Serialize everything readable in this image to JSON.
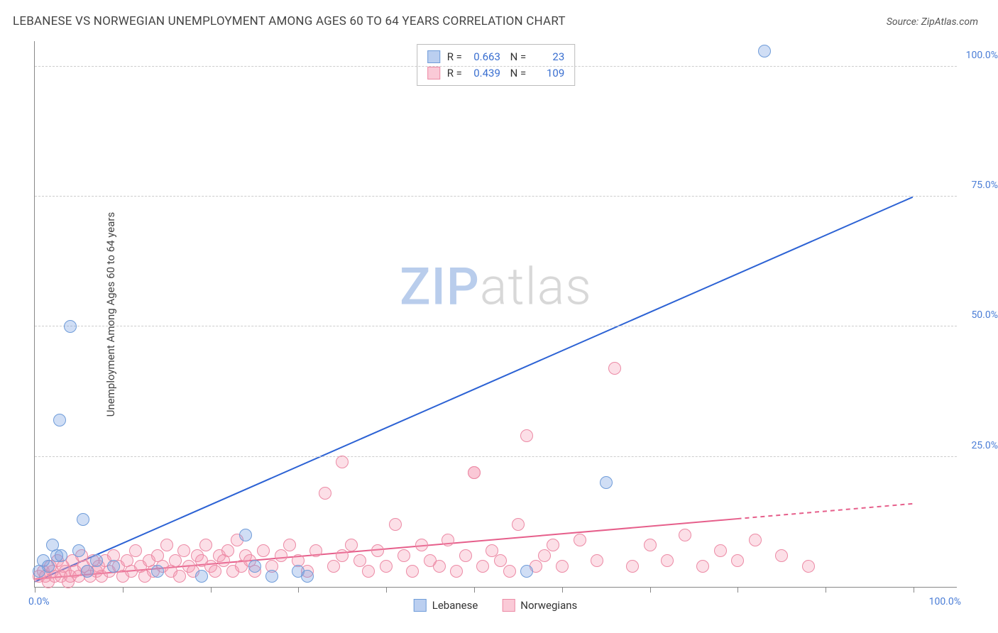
{
  "title": "LEBANESE VS NORWEGIAN UNEMPLOYMENT AMONG AGES 60 TO 64 YEARS CORRELATION CHART",
  "source": "Source: ZipAtlas.com",
  "ylabel": "Unemployment Among Ages 60 to 64 years",
  "watermark": {
    "a": "ZIP",
    "b": "atlas"
  },
  "axes": {
    "xlim": [
      0,
      105
    ],
    "ylim": [
      0,
      105
    ],
    "yticks": [
      25,
      50,
      75,
      100
    ],
    "ytick_labels": [
      "25.0%",
      "50.0%",
      "75.0%",
      "100.0%"
    ],
    "xtick_major": [
      0,
      10,
      20,
      30,
      40,
      50,
      60,
      70,
      80,
      90,
      100
    ],
    "x_start_label": "0.0%",
    "x_end_label": "100.0%",
    "grid_color": "#cccccc"
  },
  "legend_stats": [
    {
      "series": "lebanese",
      "swatch": "blue",
      "R": "0.663",
      "N": "23"
    },
    {
      "series": "norwegian",
      "swatch": "pink",
      "R": "0.439",
      "N": "109"
    }
  ],
  "bottom_legend": [
    {
      "swatch": "blue",
      "label": "Lebanese"
    },
    {
      "swatch": "pink",
      "label": "Norwegians"
    }
  ],
  "series": {
    "lebanese": {
      "color_fill": "rgba(120,160,225,0.35)",
      "color_stroke": "#6f9cd9",
      "marker_radius": 9,
      "trend": {
        "x1": 0,
        "y1": 1,
        "x2": 100,
        "y2": 75,
        "solid_until_x": 100,
        "color": "#2c62d4",
        "width": 2
      },
      "points": [
        [
          0.5,
          3
        ],
        [
          1,
          5
        ],
        [
          1.5,
          4
        ],
        [
          2,
          8
        ],
        [
          2.5,
          6
        ],
        [
          2.8,
          32
        ],
        [
          3,
          6
        ],
        [
          4,
          50
        ],
        [
          5,
          7
        ],
        [
          5.5,
          13
        ],
        [
          6,
          3
        ],
        [
          7,
          5
        ],
        [
          9,
          4
        ],
        [
          14,
          3
        ],
        [
          19,
          2
        ],
        [
          24,
          10
        ],
        [
          25,
          4
        ],
        [
          27,
          2
        ],
        [
          30,
          3
        ],
        [
          31,
          2
        ],
        [
          56,
          3
        ],
        [
          65,
          20
        ],
        [
          83,
          103
        ]
      ]
    },
    "norwegian": {
      "color_fill": "rgba(245,150,175,0.30)",
      "color_stroke": "#ec8aa5",
      "marker_radius": 9,
      "trend": {
        "x1": 0,
        "y1": 1.5,
        "x2": 100,
        "y2": 16,
        "solid_until_x": 80,
        "color": "#e65f8b",
        "width": 2
      },
      "points": [
        [
          0.5,
          2
        ],
        [
          1,
          3
        ],
        [
          1.2,
          2
        ],
        [
          1.5,
          1
        ],
        [
          1.8,
          4
        ],
        [
          2,
          3
        ],
        [
          2.3,
          2
        ],
        [
          2.6,
          5
        ],
        [
          3,
          2
        ],
        [
          3.2,
          4
        ],
        [
          3.5,
          3
        ],
        [
          3.8,
          1
        ],
        [
          4,
          2
        ],
        [
          4.3,
          5
        ],
        [
          4.6,
          3
        ],
        [
          5,
          2
        ],
        [
          5.3,
          6
        ],
        [
          5.6,
          4
        ],
        [
          6,
          3
        ],
        [
          6.3,
          2
        ],
        [
          6.6,
          5
        ],
        [
          7,
          3
        ],
        [
          7.3,
          4
        ],
        [
          7.6,
          2
        ],
        [
          8,
          5
        ],
        [
          8.5,
          3
        ],
        [
          9,
          6
        ],
        [
          9.5,
          4
        ],
        [
          10,
          2
        ],
        [
          10.5,
          5
        ],
        [
          11,
          3
        ],
        [
          11.5,
          7
        ],
        [
          12,
          4
        ],
        [
          12.5,
          2
        ],
        [
          13,
          5
        ],
        [
          13.5,
          3
        ],
        [
          14,
          6
        ],
        [
          14.5,
          4
        ],
        [
          15,
          8
        ],
        [
          15.5,
          3
        ],
        [
          16,
          5
        ],
        [
          16.5,
          2
        ],
        [
          17,
          7
        ],
        [
          17.5,
          4
        ],
        [
          18,
          3
        ],
        [
          18.5,
          6
        ],
        [
          19,
          5
        ],
        [
          19.5,
          8
        ],
        [
          20,
          4
        ],
        [
          20.5,
          3
        ],
        [
          21,
          6
        ],
        [
          21.5,
          5
        ],
        [
          22,
          7
        ],
        [
          22.5,
          3
        ],
        [
          23,
          9
        ],
        [
          23.5,
          4
        ],
        [
          24,
          6
        ],
        [
          24.5,
          5
        ],
        [
          25,
          3
        ],
        [
          26,
          7
        ],
        [
          27,
          4
        ],
        [
          28,
          6
        ],
        [
          29,
          8
        ],
        [
          30,
          5
        ],
        [
          31,
          3
        ],
        [
          32,
          7
        ],
        [
          33,
          18
        ],
        [
          34,
          4
        ],
        [
          35,
          6
        ],
        [
          35,
          24
        ],
        [
          36,
          8
        ],
        [
          37,
          5
        ],
        [
          38,
          3
        ],
        [
          39,
          7
        ],
        [
          40,
          4
        ],
        [
          41,
          12
        ],
        [
          42,
          6
        ],
        [
          43,
          3
        ],
        [
          44,
          8
        ],
        [
          45,
          5
        ],
        [
          46,
          4
        ],
        [
          47,
          9
        ],
        [
          48,
          3
        ],
        [
          49,
          6
        ],
        [
          50,
          22
        ],
        [
          50,
          22
        ],
        [
          51,
          4
        ],
        [
          52,
          7
        ],
        [
          53,
          5
        ],
        [
          54,
          3
        ],
        [
          55,
          12
        ],
        [
          56,
          29
        ],
        [
          57,
          4
        ],
        [
          58,
          6
        ],
        [
          59,
          8
        ],
        [
          60,
          4
        ],
        [
          62,
          9
        ],
        [
          64,
          5
        ],
        [
          66,
          42
        ],
        [
          68,
          4
        ],
        [
          70,
          8
        ],
        [
          72,
          5
        ],
        [
          74,
          10
        ],
        [
          76,
          4
        ],
        [
          78,
          7
        ],
        [
          80,
          5
        ],
        [
          82,
          9
        ],
        [
          85,
          6
        ],
        [
          88,
          4
        ]
      ]
    }
  }
}
